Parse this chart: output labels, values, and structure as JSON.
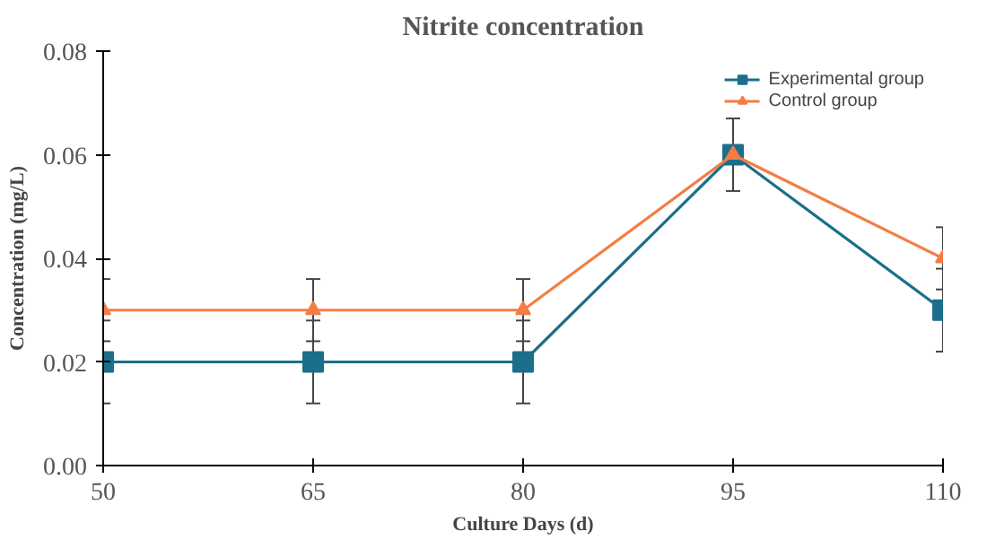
{
  "chart_data": {
    "type": "line",
    "title": "Nitrite concentration",
    "xlabel": "Culture Days (d)",
    "ylabel": "Concentration (mg/L)",
    "x": [
      50,
      65,
      80,
      95,
      110
    ],
    "series": [
      {
        "name": "Experimental group",
        "color": "#1b6f8a",
        "marker": "square",
        "values": [
          0.02,
          0.02,
          0.02,
          0.06,
          0.03
        ],
        "errors": [
          0.008,
          0.008,
          0.008,
          0.007,
          0.008
        ]
      },
      {
        "name": "Control group",
        "color": "#f47d45",
        "marker": "triangle",
        "values": [
          0.03,
          0.03,
          0.03,
          0.06,
          0.04
        ],
        "errors": [
          0.006,
          0.006,
          0.006,
          0.007,
          0.006
        ]
      }
    ],
    "xlim": [
      50,
      110
    ],
    "xticks": [
      50,
      65,
      80,
      95,
      110
    ],
    "ylim": [
      0,
      0.08
    ],
    "yticks": [
      {
        "value": 0,
        "label": "0.00"
      },
      {
        "value": 0.02,
        "label": "0.02"
      },
      {
        "value": 0.04,
        "label": "0.04"
      },
      {
        "value": 0.06,
        "label": "0.06"
      },
      {
        "value": 0.08,
        "label": "0.08"
      }
    ],
    "grid": false,
    "legend": "top right"
  }
}
